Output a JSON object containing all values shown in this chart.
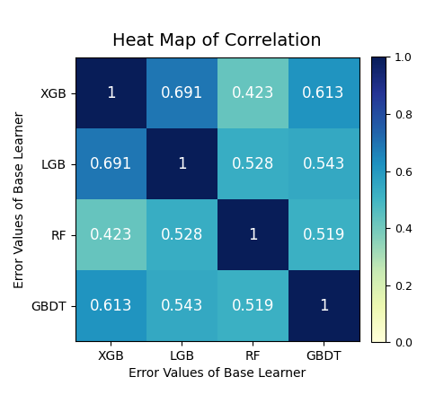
{
  "title": "Heat Map of Correlation",
  "labels": [
    "XGB",
    "LGB",
    "RF",
    "GBDT"
  ],
  "matrix": [
    [
      1.0,
      0.691,
      0.423,
      0.613
    ],
    [
      0.691,
      1.0,
      0.528,
      0.543
    ],
    [
      0.423,
      0.528,
      1.0,
      0.519
    ],
    [
      0.613,
      0.543,
      0.519,
      1.0
    ]
  ],
  "xlabel": "Error Values of Base Learner",
  "ylabel": "Error Values of Base Learner",
  "cmap": "YlGnBu",
  "vmin": 0.0,
  "vmax": 1.0,
  "text_color": "white",
  "title_fontsize": 14,
  "label_fontsize": 10,
  "tick_fontsize": 10,
  "annot_fontsize": 12,
  "colorbar_ticks": [
    0.0,
    0.2,
    0.4,
    0.6,
    0.8,
    1.0
  ]
}
